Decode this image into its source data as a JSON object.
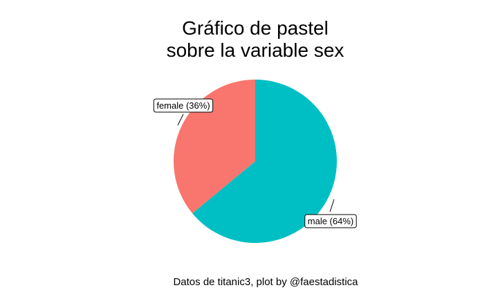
{
  "chart_data": {
    "type": "pie",
    "title_line1": "Gráfico de pastel",
    "title_line2": "sobre la variable sex",
    "caption": "Datos de titanic3, plot by @faestadistica",
    "slices": [
      {
        "category": "male",
        "percent": 64,
        "label": "male (64%)",
        "color": "#00BFC4"
      },
      {
        "category": "female",
        "percent": 36,
        "label": "female (36%)",
        "color": "#F8766D"
      }
    ],
    "legend": "none",
    "grid": false
  }
}
